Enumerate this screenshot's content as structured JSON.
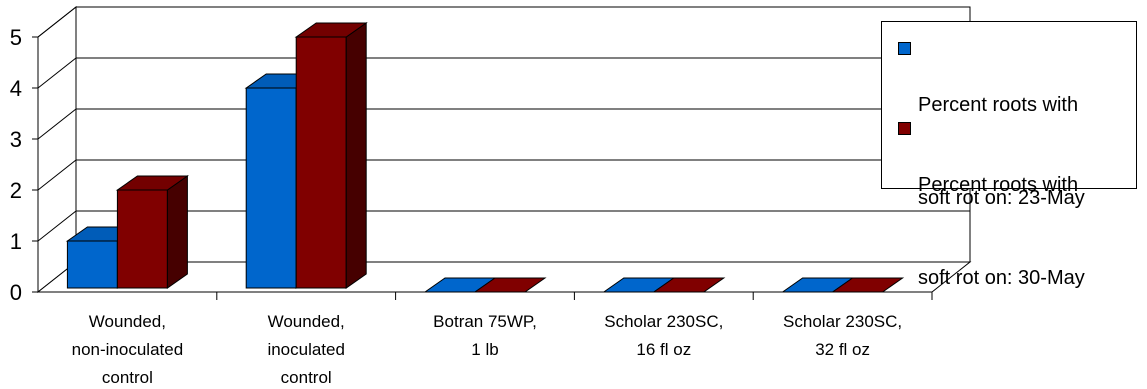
{
  "chart_data": {
    "type": "bar",
    "title": "",
    "xlabel": "",
    "ylabel": "",
    "ylim": [
      0,
      5
    ],
    "yticks": [
      0,
      1,
      2,
      3,
      4,
      5
    ],
    "grid": true,
    "three_d": true,
    "legend_position": "right",
    "categories": [
      [
        "Wounded,",
        "non-inoculated",
        "control"
      ],
      [
        "Wounded,",
        "inoculated",
        "control"
      ],
      [
        "Botran 75WP,",
        "1 lb"
      ],
      [
        "Scholar 230SC,",
        "16 fl oz"
      ],
      [
        "Scholar 230SC,",
        "32 fl oz"
      ]
    ],
    "series": [
      {
        "name": "Percent roots with soft rot on: 23-May",
        "values": [
          1,
          4,
          0,
          0,
          0
        ],
        "color": "#0066CC"
      },
      {
        "name": "Percent roots with soft rot on: 30-May",
        "values": [
          2,
          5,
          0,
          0,
          0
        ],
        "color": "#800000"
      }
    ]
  },
  "legend": {
    "items": [
      {
        "line1": "Percent roots with",
        "line2": "soft rot on: 23-May"
      },
      {
        "line1": "Percent roots with",
        "line2": "soft rot on: 30-May"
      }
    ]
  }
}
